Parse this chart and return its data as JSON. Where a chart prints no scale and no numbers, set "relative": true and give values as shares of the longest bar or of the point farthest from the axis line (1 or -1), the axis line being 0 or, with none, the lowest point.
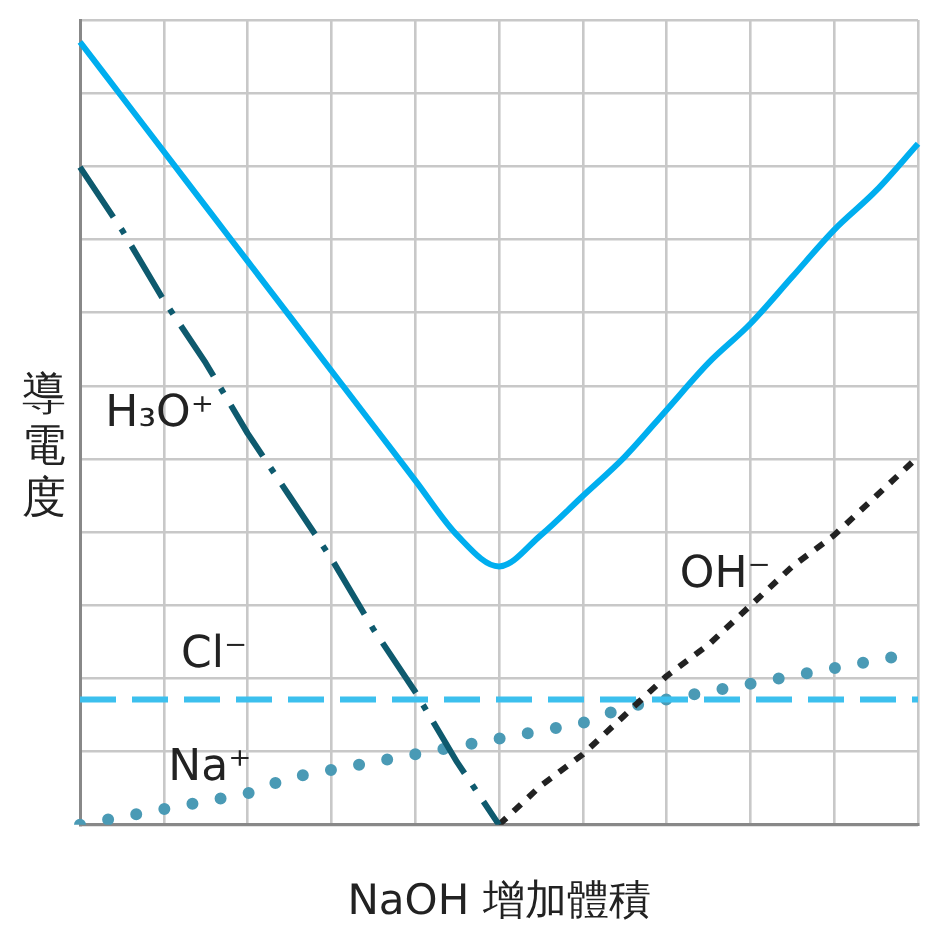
{
  "chart_data": {
    "type": "line",
    "relative": true,
    "xlabel": "NaOH 增加體積",
    "ylabel": "導電度",
    "grid": true,
    "legend": false,
    "marker": "none",
    "categories": [
      null,
      null,
      null,
      null,
      null,
      null,
      null,
      null,
      null,
      null,
      null,
      null,
      null,
      null,
      null,
      null,
      null,
      null,
      null,
      null,
      null
    ],
    "series": [
      {
        "color": "#00aeef",
        "line_style": "solid",
        "values": [
          1,
          0.93,
          0.86,
          0.79,
          0.72,
          0.65,
          0.58,
          0.51,
          0.44,
          0.37,
          0.33,
          0.37,
          0.42,
          0.47,
          0.53,
          0.59,
          0.64,
          0.7,
          0.76,
          0.81,
          0.87
        ]
      },
      {
        "name": "H₃O⁺",
        "color": "#0e5a6e",
        "line_style": "dashed",
        "values": [
          0.84,
          0.76,
          0.67,
          0.59,
          0.5,
          0.42,
          0.34,
          0.25,
          0.17,
          0.08,
          0,
          null,
          null,
          null,
          null,
          null,
          null,
          null,
          null,
          null,
          null
        ]
      },
      {
        "name": "OH⁻",
        "color": "#222222",
        "line_style": "dotted",
        "values": [
          null,
          null,
          null,
          null,
          null,
          null,
          null,
          null,
          null,
          null,
          0,
          0.05,
          0.09,
          0.14,
          0.19,
          0.23,
          0.28,
          0.33,
          0.37,
          0.42,
          0.47
        ]
      },
      {
        "name": "Cl⁻",
        "color": "#3cc0ee",
        "line_style": "dashed",
        "values": [
          0.16,
          0.16,
          0.16,
          0.16,
          0.16,
          0.16,
          0.16,
          0.16,
          0.16,
          0.16,
          0.16,
          0.16,
          0.16,
          0.16,
          0.16,
          0.16,
          0.16,
          0.16,
          0.16,
          0.16,
          0.16
        ]
      },
      {
        "name": "Na⁺",
        "color": "#4a9ab5",
        "line_style": "dotted",
        "values": [
          0,
          0.01,
          0.02,
          0.03,
          0.04,
          0.06,
          0.07,
          0.08,
          0.09,
          0.1,
          0.11,
          0.12,
          0.13,
          0.15,
          0.16,
          0.17,
          0.18,
          0.19,
          0.2,
          0.21,
          0.22
        ]
      }
    ]
  }
}
